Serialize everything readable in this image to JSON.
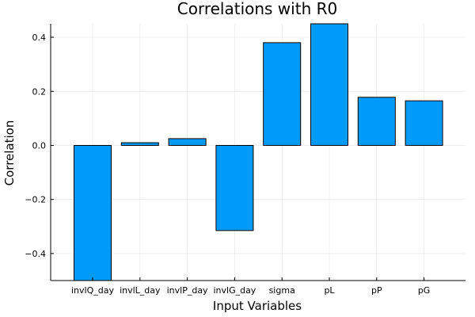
{
  "chart_data": {
    "type": "bar",
    "title": "Correlations with R0",
    "xlabel": "Input Variables",
    "ylabel": "Correlation",
    "categories": [
      "invlQ_day",
      "invlL_day",
      "invlP_day",
      "invlG_day",
      "sigma",
      "pL",
      "pP",
      "pG"
    ],
    "values": [
      -0.55,
      0.01,
      0.025,
      -0.315,
      0.38,
      0.455,
      0.178,
      0.165
    ],
    "ylim": [
      -0.5,
      0.45
    ],
    "yticks": [
      -0.4,
      -0.2,
      0.0,
      0.2,
      0.4
    ],
    "ytick_labels": [
      "−0.4",
      "−0.2",
      "0.0",
      "0.2",
      "0.4"
    ],
    "grid": true,
    "legend": false,
    "bar_color": "#009AF9"
  }
}
